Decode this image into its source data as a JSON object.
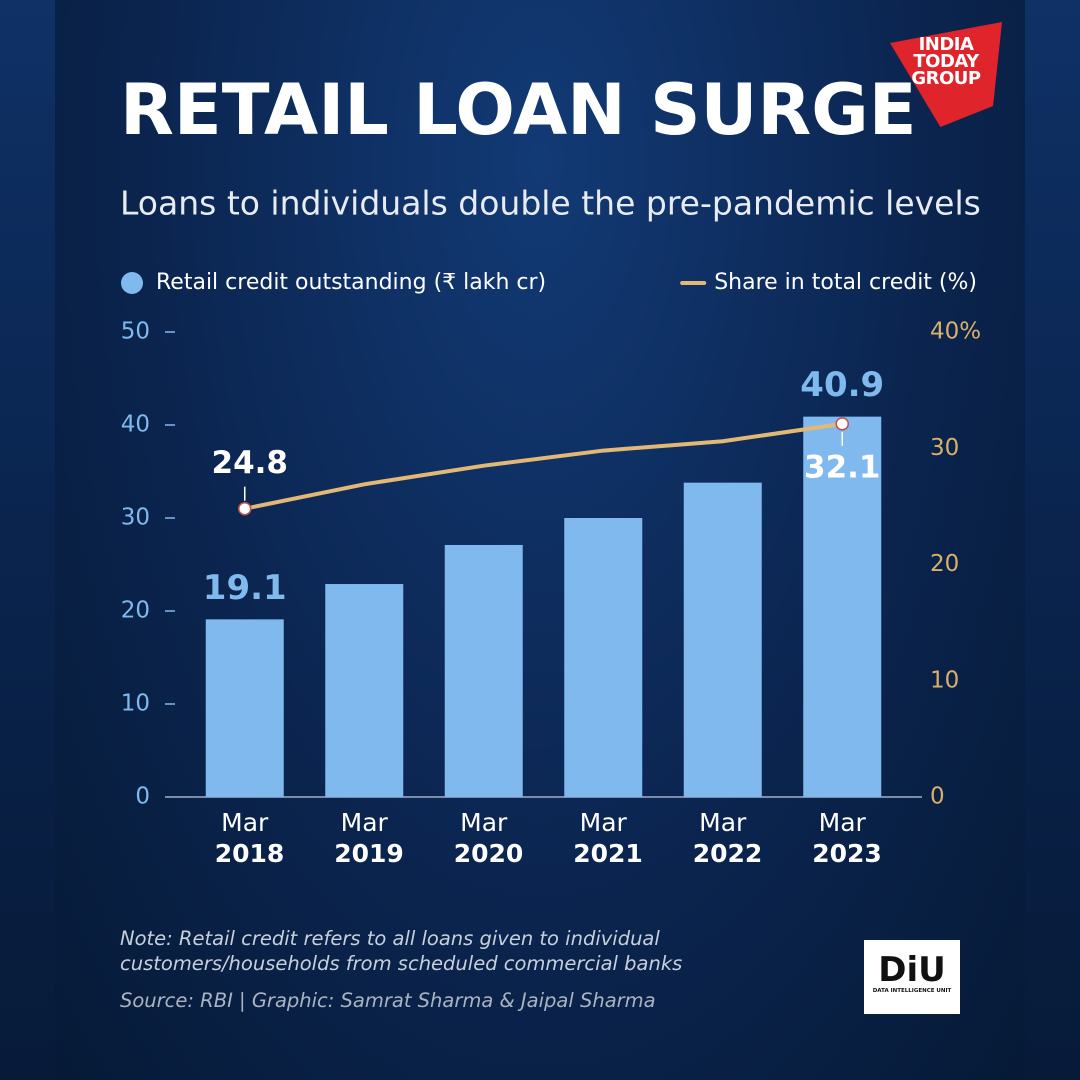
{
  "chart_data": {
    "type": "bar-line",
    "title": "RETAIL LOAN SURGE",
    "subtitle": "Loans to individuals double the pre-pandemic levels",
    "categories": [
      "Mar 2018",
      "Mar 2019",
      "Mar 2020",
      "Mar 2021",
      "Mar 2022",
      "Mar 2023"
    ],
    "series": [
      {
        "name": "Retail credit outstanding (₹ lakh cr)",
        "type": "bar",
        "color": "#80b9ee",
        "values": [
          19.1,
          22.9,
          27.1,
          30.0,
          33.8,
          40.9
        ],
        "value_labels": [
          "19.1",
          null,
          null,
          null,
          null,
          "40.9"
        ]
      },
      {
        "name": "Share in total credit (%)",
        "type": "line",
        "axis": "y2",
        "color": "#e3b874",
        "values": [
          24.8,
          26.9,
          28.5,
          29.8,
          30.6,
          32.1
        ],
        "value_labels": [
          "24.8",
          null,
          null,
          null,
          null,
          "32.1"
        ]
      }
    ],
    "ylim": [
      0,
      50
    ],
    "yticks": [
      0,
      10,
      20,
      30,
      40,
      50
    ],
    "y2lim": [
      0,
      40
    ],
    "y2ticks": [
      0,
      10,
      20,
      30,
      {
        "value": 40,
        "label": "40%"
      }
    ],
    "note": "Note: Retail credit refers to all loans given to individual customers/households from scheduled commercial banks",
    "source": "Source: RBI  |  Graphic: Samrat Sharma & Jaipal Sharma"
  },
  "logos": {
    "publisher": "INDIA TODAY GROUP",
    "unit": "DiU",
    "unit_name": "DATA INTELLIGENCE UNIT"
  }
}
